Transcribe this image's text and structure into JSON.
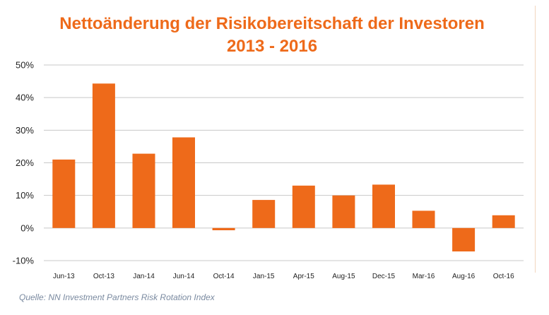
{
  "chart_data": {
    "type": "bar",
    "title_line1": "Nettoänderung der Risikobereitschaft der Investoren",
    "title_line2": "2013 - 2016",
    "categories": [
      "Jun-13",
      "Oct-13",
      "Jan-14",
      "Jun-14",
      "Oct-14",
      "Jan-15",
      "Apr-15",
      "Aug-15",
      "Dec-15",
      "Mar-16",
      "Aug-16",
      "Oct-16"
    ],
    "values": [
      21,
      44.3,
      22.8,
      27.8,
      -0.7,
      8.6,
      13,
      10,
      13.3,
      5.3,
      -7.2,
      3.9
    ],
    "ylim": [
      -10,
      50
    ],
    "yticks": [
      -10,
      0,
      10,
      20,
      30,
      40,
      50
    ],
    "ytick_labels": [
      "-10%",
      "0%",
      "10%",
      "20%",
      "30%",
      "40%",
      "50%"
    ],
    "grid": true,
    "bar_color": "#ee6a1a",
    "source": "Quelle: NN Investment Partners Risk Rotation Index"
  }
}
